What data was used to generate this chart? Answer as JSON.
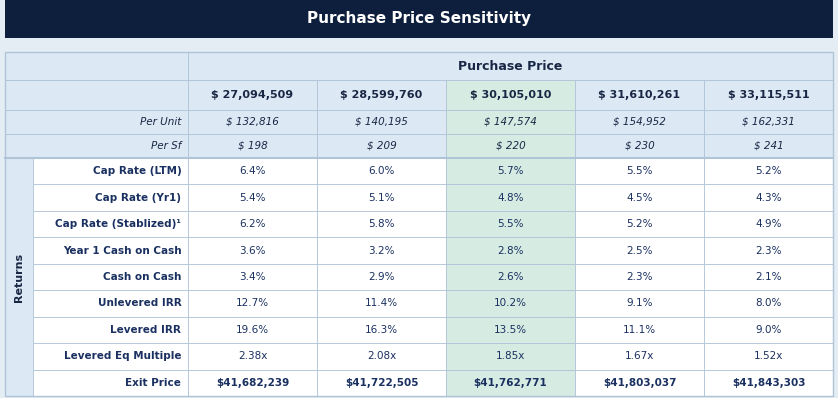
{
  "title": "Purchase Price Sensitivity",
  "title_bg": "#0d1f3c",
  "title_color": "#ffffff",
  "header_label": "Purchase Price",
  "col_header_bg": "#dce9f5",
  "col_header_color": "#1a2744",
  "highlight_col": 2,
  "highlight_col_bg": "#d6ece3",
  "returns_label": "Returns",
  "returns_bg": "#dce9f5",
  "returns_color": "#1a2744",
  "table_bg": "#ffffff",
  "outer_bg": "#e4ecf4",
  "purchase_prices": [
    "$ 27,094,509",
    "$ 28,599,760",
    "$ 30,105,010",
    "$ 31,610,261",
    "$ 33,115,511"
  ],
  "per_unit": [
    "$ 132,816",
    "$ 140,195",
    "$ 147,574",
    "$ 154,952",
    "$ 162,331"
  ],
  "per_sf": [
    "$ 198",
    "$ 209",
    "$ 220",
    "$ 230",
    "$ 241"
  ],
  "rows": [
    {
      "label": "Cap Rate (LTM)",
      "values": [
        "6.4%",
        "6.0%",
        "5.7%",
        "5.5%",
        "5.2%"
      ],
      "bold": true
    },
    {
      "label": "Cap Rate (Yr1)",
      "values": [
        "5.4%",
        "5.1%",
        "4.8%",
        "4.5%",
        "4.3%"
      ],
      "bold": true
    },
    {
      "label": "Cap Rate (Stablized)¹",
      "values": [
        "6.2%",
        "5.8%",
        "5.5%",
        "5.2%",
        "4.9%"
      ],
      "bold": true
    },
    {
      "label": "Year 1 Cash on Cash",
      "values": [
        "3.6%",
        "3.2%",
        "2.8%",
        "2.5%",
        "2.3%"
      ],
      "bold": true
    },
    {
      "label": "Cash on Cash",
      "values": [
        "3.4%",
        "2.9%",
        "2.6%",
        "2.3%",
        "2.1%"
      ],
      "bold": true
    },
    {
      "label": "Unlevered IRR",
      "values": [
        "12.7%",
        "11.4%",
        "10.2%",
        "9.1%",
        "8.0%"
      ],
      "bold": true
    },
    {
      "label": "Levered IRR",
      "values": [
        "19.6%",
        "16.3%",
        "13.5%",
        "11.1%",
        "9.0%"
      ],
      "bold": true
    },
    {
      "label": "Levered Eq Multiple",
      "values": [
        "2.38x",
        "2.08x",
        "1.85x",
        "1.67x",
        "1.52x"
      ],
      "bold": true
    },
    {
      "label": "Exit Price",
      "values": [
        "$41,682,239",
        "$41,722,505",
        "$41,762,771",
        "$41,803,037",
        "$41,843,303"
      ],
      "bold": true,
      "is_exit": true
    }
  ],
  "grid_color": "#b0c4d8",
  "text_color_body": "#1a3060",
  "font_size_title": 11,
  "font_size_header": 8,
  "font_size_body": 7.5
}
